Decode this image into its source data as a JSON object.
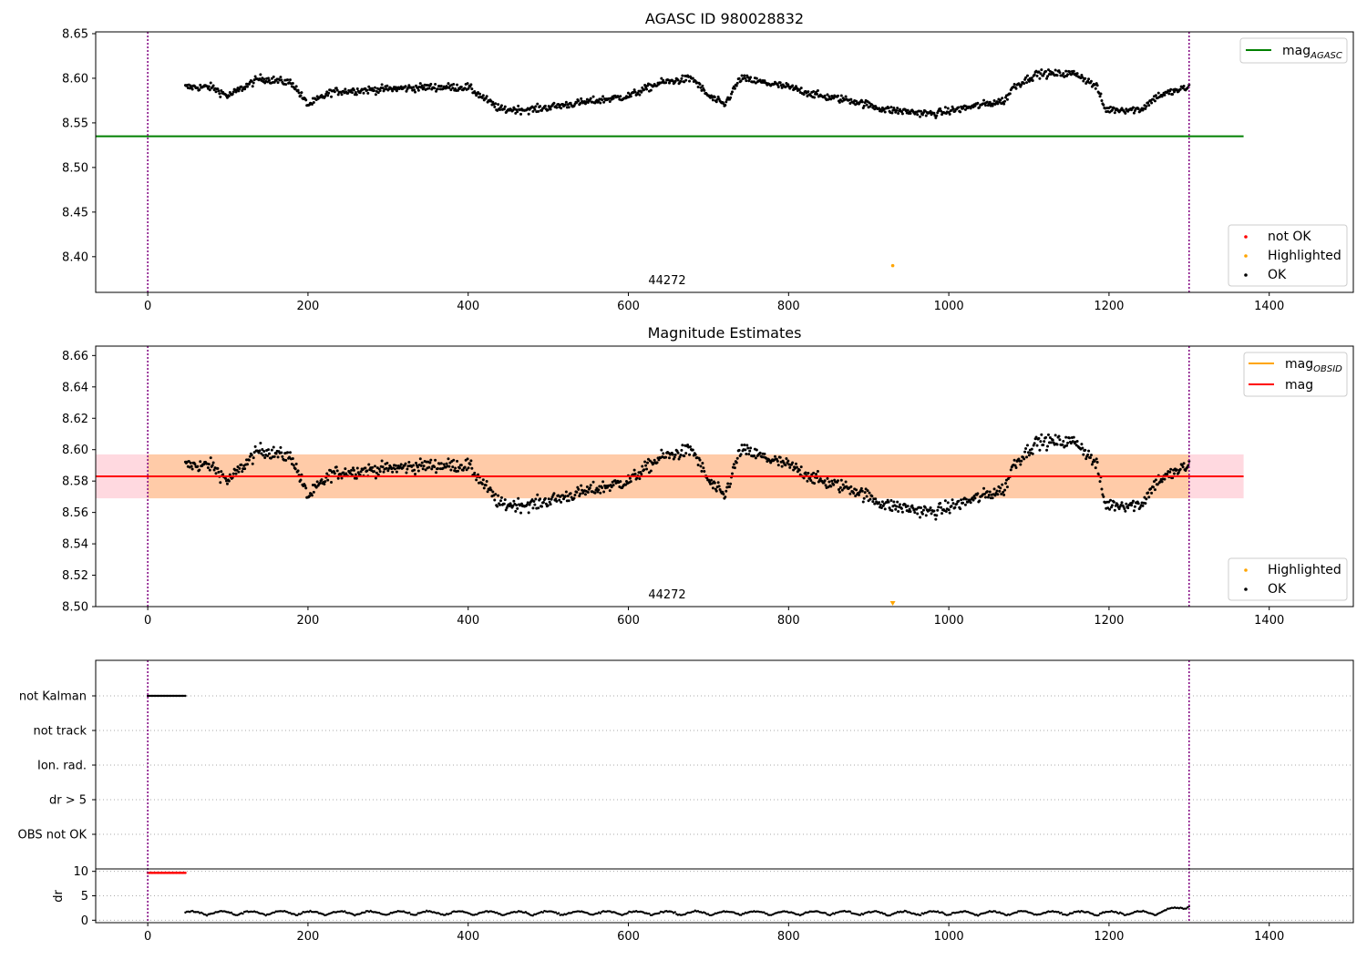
{
  "chart_data": [
    {
      "type": "scatter",
      "title": "AGASC ID 980028832",
      "xlim": [
        -65,
        1505
      ],
      "ylim": [
        8.36,
        8.652
      ],
      "xticks": [
        "0",
        "200",
        "400",
        "600",
        "800",
        "1000",
        "1200",
        "1400"
      ],
      "yticks": [
        "8.40",
        "8.45",
        "8.50",
        "8.55",
        "8.60",
        "8.65"
      ],
      "vlines": [
        0,
        1300
      ],
      "hline": {
        "name": "mag",
        "sub": "AGASC",
        "y": 8.535,
        "x_range": [
          -65,
          1368
        ],
        "color": "#008000"
      },
      "legend_lines": [
        {
          "name": "mag",
          "sub": "AGASC",
          "color": "#008000"
        }
      ],
      "legend_points": [
        {
          "name": "not OK",
          "color": "#ff0000"
        },
        {
          "name": "Highlighted",
          "color": "#ffa500"
        },
        {
          "name": "OK",
          "color": "#000000"
        }
      ],
      "highlight_point": {
        "x": 930,
        "y": 8.39
      },
      "annotation": {
        "text": "44272",
        "x": 650
      },
      "series": [
        {
          "label": "OK",
          "color": "#000000",
          "x_range": [
            47,
            1300
          ],
          "n": 1150,
          "base": 8.587,
          "anchors": [
            [
              47,
              8.59
            ],
            [
              80,
              8.59
            ],
            [
              100,
              8.58
            ],
            [
              140,
              8.6
            ],
            [
              180,
              8.595
            ],
            [
              200,
              8.57
            ],
            [
              230,
              8.585
            ],
            [
              300,
              8.588
            ],
            [
              350,
              8.59
            ],
            [
              400,
              8.59
            ],
            [
              440,
              8.565
            ],
            [
              480,
              8.565
            ],
            [
              560,
              8.575
            ],
            [
              600,
              8.58
            ],
            [
              640,
              8.595
            ],
            [
              680,
              8.6
            ],
            [
              700,
              8.58
            ],
            [
              720,
              8.57
            ],
            [
              740,
              8.6
            ],
            [
              800,
              8.59
            ],
            [
              840,
              8.58
            ],
            [
              880,
              8.575
            ],
            [
              920,
              8.565
            ],
            [
              980,
              8.56
            ],
            [
              1040,
              8.57
            ],
            [
              1070,
              8.575
            ],
            [
              1080,
              8.59
            ],
            [
              1110,
              8.605
            ],
            [
              1160,
              8.605
            ],
            [
              1185,
              8.59
            ],
            [
              1195,
              8.565
            ],
            [
              1240,
              8.565
            ],
            [
              1260,
              8.58
            ],
            [
              1300,
              8.59
            ]
          ],
          "noise": 0.007
        }
      ]
    },
    {
      "type": "scatter",
      "title": "Magnitude Estimates",
      "xlim": [
        -65,
        1505
      ],
      "ylim": [
        8.5,
        8.666
      ],
      "xticks": [
        "0",
        "200",
        "400",
        "600",
        "800",
        "1000",
        "1200",
        "1400"
      ],
      "yticks": [
        "8.50",
        "8.52",
        "8.54",
        "8.56",
        "8.58",
        "8.60",
        "8.62",
        "8.64",
        "8.66"
      ],
      "vlines": [
        0,
        1300
      ],
      "mag_line": {
        "name": "mag",
        "y": 8.583,
        "color": "#ff0000"
      },
      "band_outer": [
        8.569,
        8.597
      ],
      "band_inner": [
        8.569,
        8.597
      ],
      "band_x_range": [
        -65,
        1368
      ],
      "legend_lines": [
        {
          "name": "mag",
          "sub": "OBSID",
          "color": "#ffa500"
        },
        {
          "name": "mag",
          "sub": "",
          "color": "#ff0000"
        }
      ],
      "legend_points": [
        {
          "name": "Highlighted",
          "color": "#ffa500"
        },
        {
          "name": "OK",
          "color": "#000000"
        }
      ],
      "highlight_point": {
        "x": 930,
        "y": 8.502
      },
      "annotation": {
        "text": "44272",
        "x": 650
      }
    },
    {
      "type": "scatter",
      "title": "",
      "xlim": [
        -65,
        1505
      ],
      "xticks": [
        "0",
        "200",
        "400",
        "600",
        "800",
        "1000",
        "1200",
        "1400"
      ],
      "flag_labels": [
        "not Kalman",
        "not track",
        "Ion. rad.",
        "dr > 5",
        "OBS not OK"
      ],
      "flag_segments": [
        {
          "label": "not Kalman",
          "x_range": [
            0,
            47
          ]
        }
      ],
      "dr_ylabel": "dr",
      "dr_yticks": [
        "0",
        "5",
        "10"
      ],
      "dr_ylim": [
        -0.5,
        10.5
      ],
      "dr_series": {
        "x_range": [
          47,
          1300
        ],
        "mean": 1.0,
        "red_x_range": [
          0,
          47
        ],
        "red_y": 9.7
      },
      "vlines": [
        0,
        1300
      ]
    }
  ]
}
